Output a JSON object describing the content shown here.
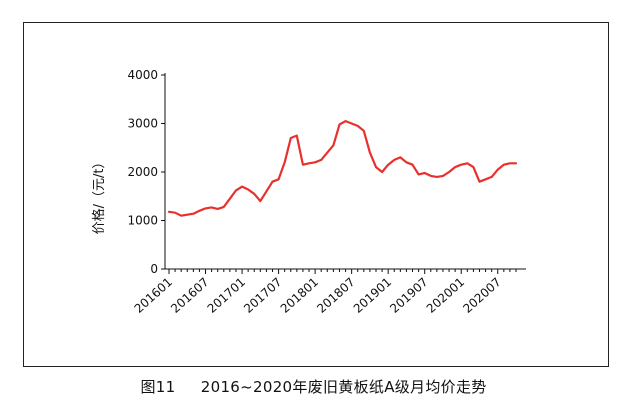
{
  "caption": {
    "figure_no": "图11",
    "title": "2016~2020年废旧黄板纸A级月均价走势"
  },
  "chart_data": {
    "type": "line",
    "title": "",
    "xlabel": "",
    "ylabel": "价格/（元/t）",
    "ylim": [
      0,
      4000
    ],
    "yticks": [
      0,
      1000,
      2000,
      3000,
      4000
    ],
    "xtick_labels": [
      "201601",
      "201607",
      "201701",
      "201707",
      "201801",
      "201807",
      "201901",
      "201907",
      "202001",
      "202007"
    ],
    "grid": false,
    "line_color": "#e8302c",
    "x": [
      "201601",
      "201602",
      "201603",
      "201604",
      "201605",
      "201606",
      "201607",
      "201608",
      "201609",
      "201610",
      "201611",
      "201612",
      "201701",
      "201702",
      "201703",
      "201704",
      "201705",
      "201706",
      "201707",
      "201708",
      "201709",
      "201710",
      "201711",
      "201712",
      "201801",
      "201802",
      "201803",
      "201804",
      "201805",
      "201806",
      "201807",
      "201808",
      "201809",
      "201810",
      "201811",
      "201812",
      "201901",
      "201902",
      "201903",
      "201904",
      "201905",
      "201906",
      "201907",
      "201908",
      "201909",
      "201910",
      "201911",
      "201912",
      "202001",
      "202002",
      "202003",
      "202004",
      "202005",
      "202006",
      "202007",
      "202008",
      "202009",
      "202010"
    ],
    "series": [
      {
        "values": [
          1180,
          1160,
          1100,
          1120,
          1140,
          1200,
          1250,
          1270,
          1240,
          1280,
          1450,
          1620,
          1700,
          1640,
          1550,
          1400,
          1600,
          1800,
          1850,
          2200,
          2700,
          2750,
          2150,
          2180,
          2200,
          2250,
          2400,
          2550,
          2980,
          3050,
          3000,
          2950,
          2850,
          2400,
          2100,
          2000,
          2150,
          2250,
          2300,
          2200,
          2150,
          1950,
          1980,
          1920,
          1900,
          1920,
          2000,
          2100,
          2150,
          2180,
          2100,
          1800,
          1850,
          1900,
          2050,
          2150,
          2180,
          2180
        ]
      }
    ]
  }
}
